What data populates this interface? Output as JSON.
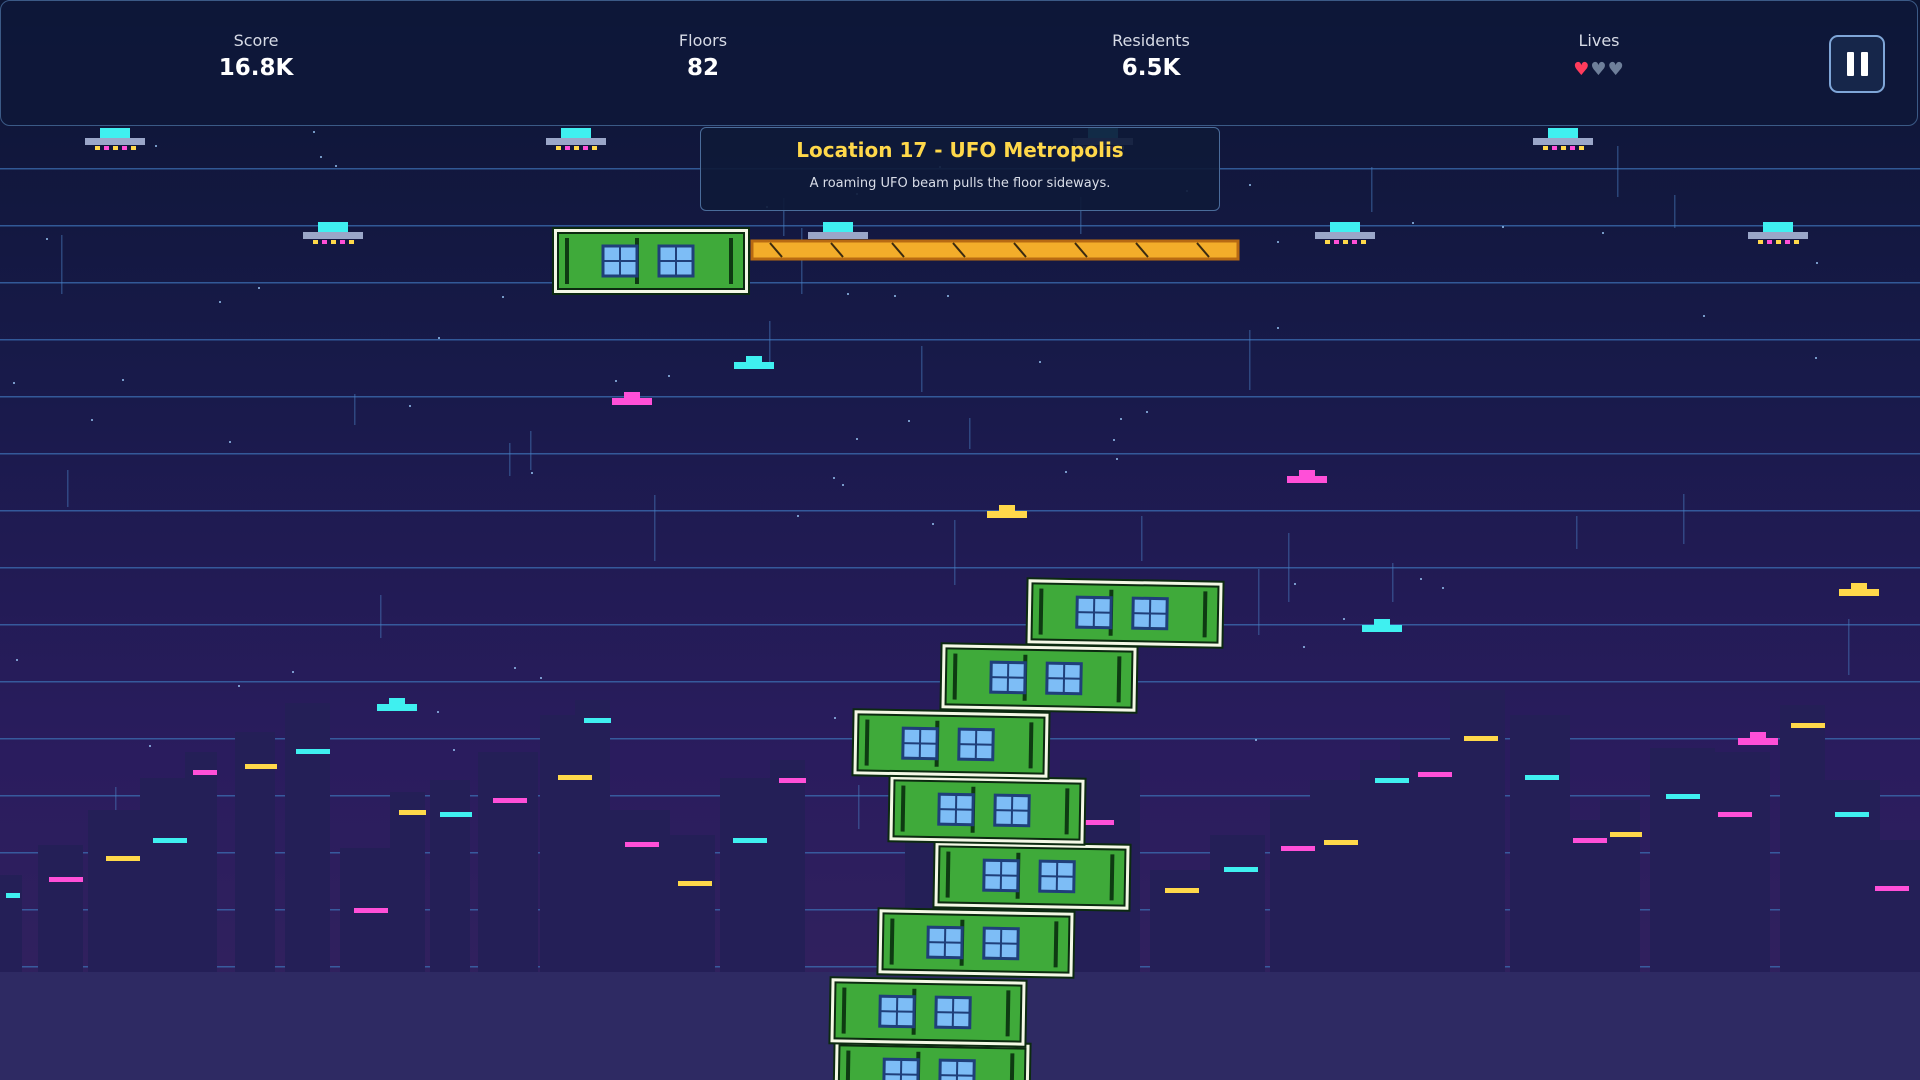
{
  "hud": {
    "score": {
      "label": "Score",
      "value": "16.8K"
    },
    "floors": {
      "label": "Floors",
      "value": "82"
    },
    "residents": {
      "label": "Residents",
      "value": "6.5K"
    },
    "lives": {
      "label": "Lives",
      "total": 3,
      "remaining": 1
    }
  },
  "location": {
    "title": "Location 17 - UFO Metropolis",
    "description": "A roaming UFO beam pulls the floor sideways."
  },
  "colors": {
    "accent_yellow": "#ffd84a",
    "block_green": "#3faa3a",
    "block_border": "#0c2a10",
    "neon_cyan": "#3ff0f0",
    "neon_pink": "#ff4fd8",
    "neon_yellow": "#ffd84a",
    "heart_full": "#ff3b5c",
    "heart_empty": "#6e7f9a"
  },
  "icons": {
    "pause": "pause-icon",
    "heart": "heart-icon",
    "ufo": "ufo-icon"
  }
}
